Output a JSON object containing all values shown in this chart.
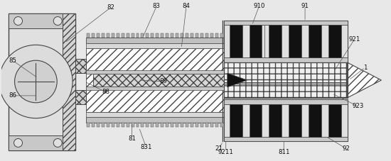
{
  "bg_color": "#e8e8e8",
  "lc": "#444444",
  "bc": "#111111",
  "figw": 5.5,
  "figh": 2.27,
  "dpi": 100
}
